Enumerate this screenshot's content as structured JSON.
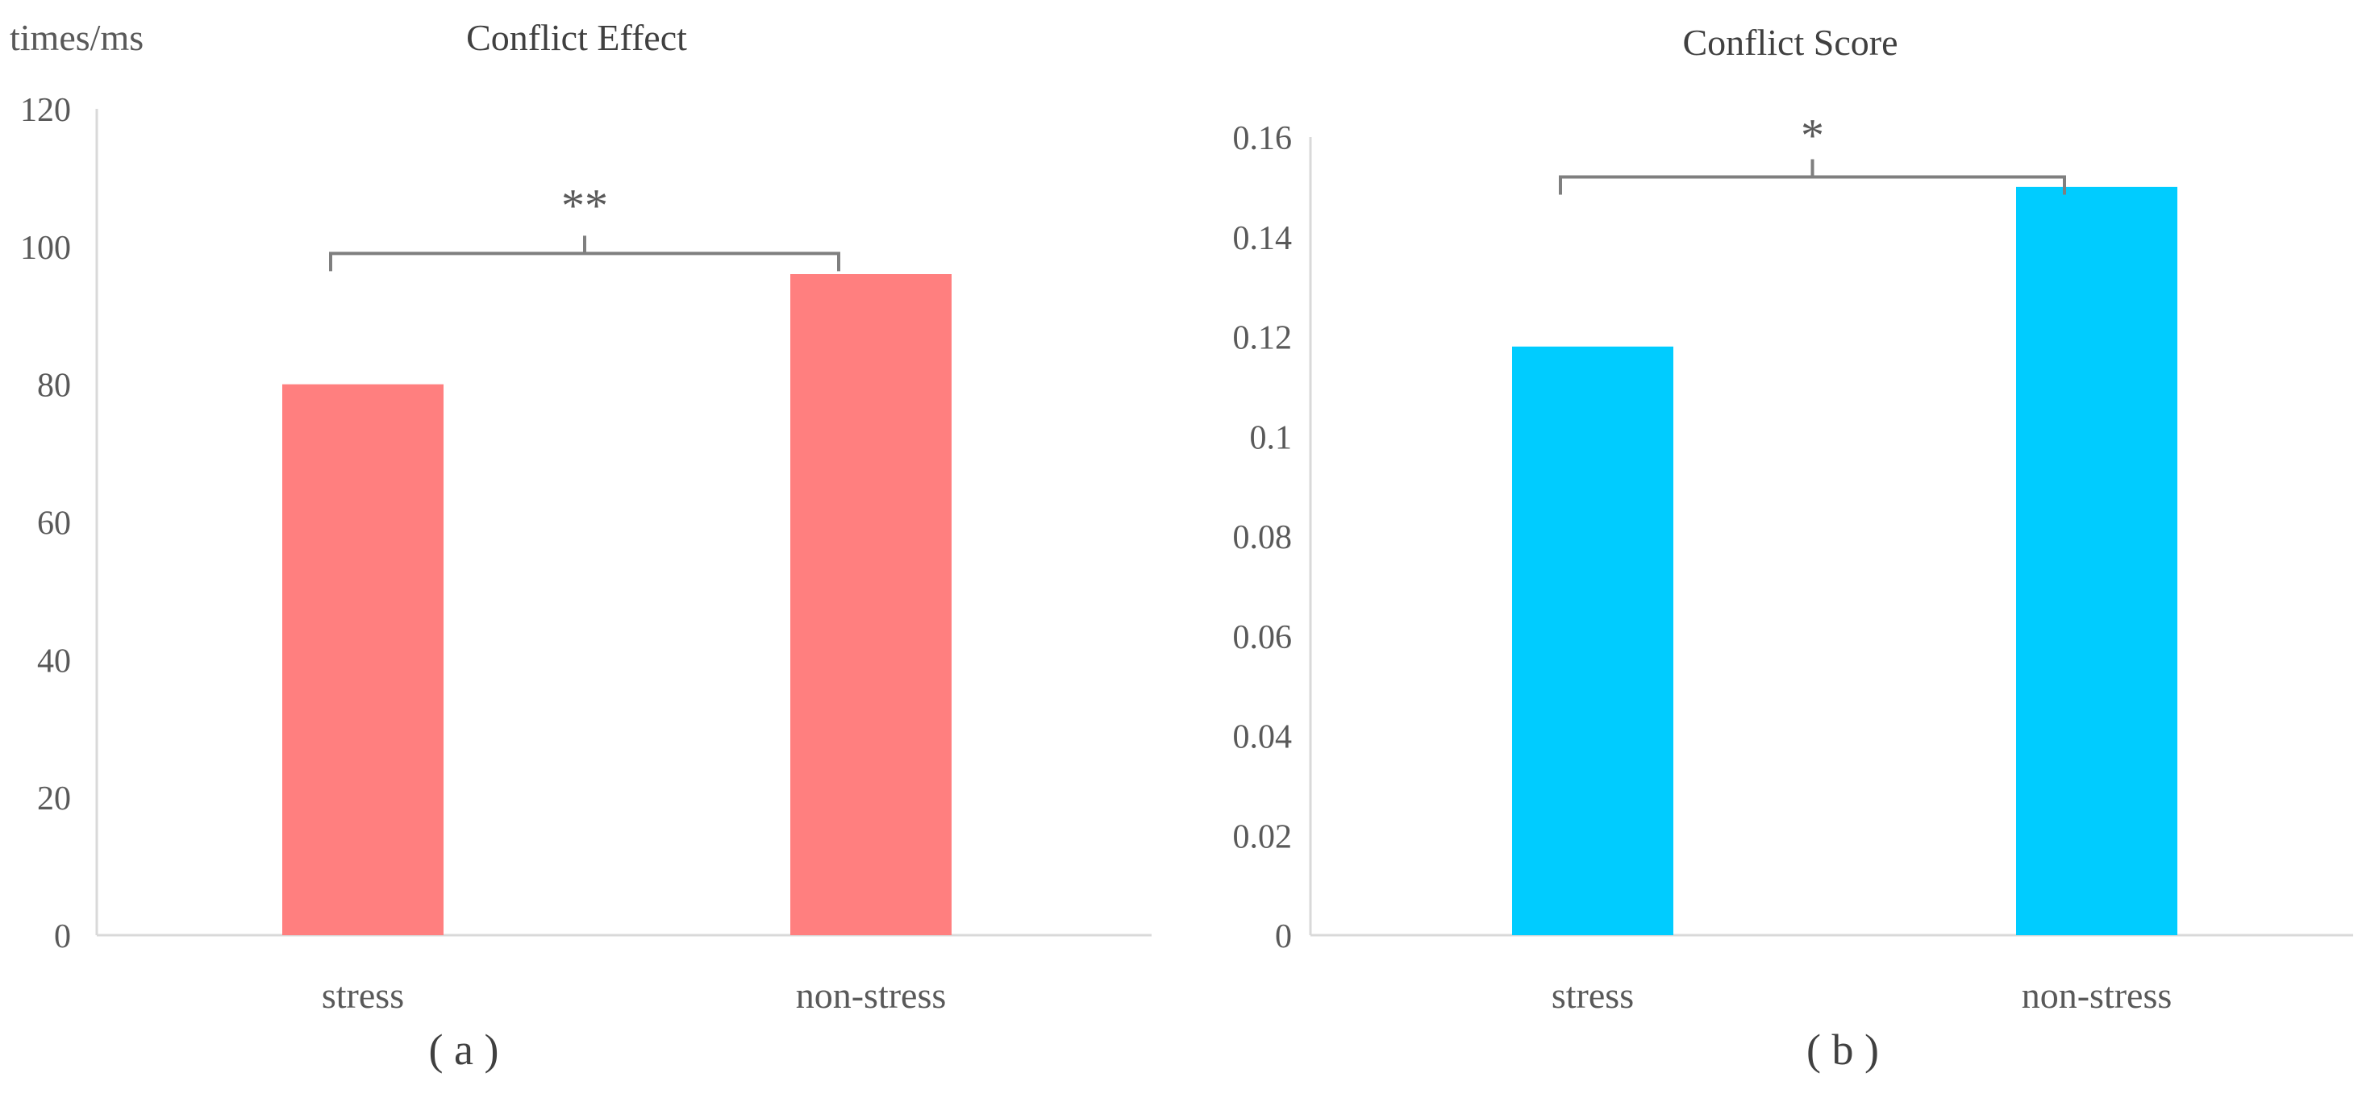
{
  "chart_data": [
    {
      "panel": "( a )",
      "type": "bar",
      "title": "Conflict Effect",
      "ylabel": "times/ms",
      "xlabel": "",
      "categories": [
        "stress",
        "non-stress"
      ],
      "values": [
        80,
        96
      ],
      "ylim": [
        0,
        120
      ],
      "yticks": [
        0,
        20,
        40,
        60,
        80,
        100,
        120
      ],
      "ytick_labels": [
        "0",
        "20",
        "40",
        "60",
        "80",
        "100",
        "120"
      ],
      "color": "#ff7f7f",
      "grid": false,
      "annotation": {
        "text": "**",
        "between": [
          "stress",
          "non-stress"
        ],
        "level": 99
      }
    },
    {
      "panel": "( b )",
      "type": "bar",
      "title": "Conflict Score",
      "ylabel": "",
      "xlabel": "",
      "categories": [
        "stress",
        "non-stress"
      ],
      "values": [
        0.118,
        0.15
      ],
      "ylim": [
        0,
        0.16
      ],
      "yticks": [
        0,
        0.02,
        0.04,
        0.06,
        0.08,
        0.1,
        0.12,
        0.14,
        0.16
      ],
      "ytick_labels": [
        "0",
        "0.02",
        "0.04",
        "0.06",
        "0.08",
        "0.1",
        "0.12",
        "0.14",
        "0.16"
      ],
      "color": "#00ccff",
      "grid": false,
      "annotation": {
        "text": "*",
        "between": [
          "stress",
          "non-stress"
        ],
        "level": 0.152
      }
    }
  ]
}
